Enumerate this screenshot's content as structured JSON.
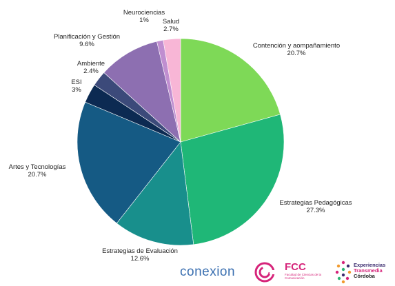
{
  "chart_data": {
    "type": "pie",
    "title": "",
    "slices": [
      {
        "label": "Contención y aompañamiento",
        "value": 20.7,
        "value_label": "20.7%",
        "color": "#7ed957"
      },
      {
        "label": "Estrategias Pedagógicas",
        "value": 27.3,
        "value_label": "27.3%",
        "color": "#1fb777"
      },
      {
        "label": "Estrategias de Evaluación",
        "value": 12.6,
        "value_label": "12.6%",
        "color": "#188f8c"
      },
      {
        "label": "Artes y Tecnologías",
        "value": 20.7,
        "value_label": "20.7%",
        "color": "#155a84"
      },
      {
        "label": "ESI",
        "value": 3,
        "value_label": "3%",
        "color": "#0c2a52"
      },
      {
        "label": "Ambiente",
        "value": 2.4,
        "value_label": "2.4%",
        "color": "#3c4a7a"
      },
      {
        "label": "Planificación y Gestión",
        "value": 9.6,
        "value_label": "9.6%",
        "color": "#8d6fb1"
      },
      {
        "label": "Neurociencias",
        "value": 1,
        "value_label": "1%",
        "color": "#c08ed0"
      },
      {
        "label": "Salud",
        "value": 2.7,
        "value_label": "2.7%",
        "color": "#f8b6d6"
      }
    ],
    "start": "top",
    "direction": "clockwise"
  },
  "footer": {
    "conexion": "conexion",
    "fcc_title": "FCC",
    "fcc_subtitle": "Facultad de Ciencias de la Comunicación",
    "experiencias_line1": "Experiencias",
    "experiencias_line2": "Transmedia",
    "experiencias_line3": "Córdoba"
  }
}
